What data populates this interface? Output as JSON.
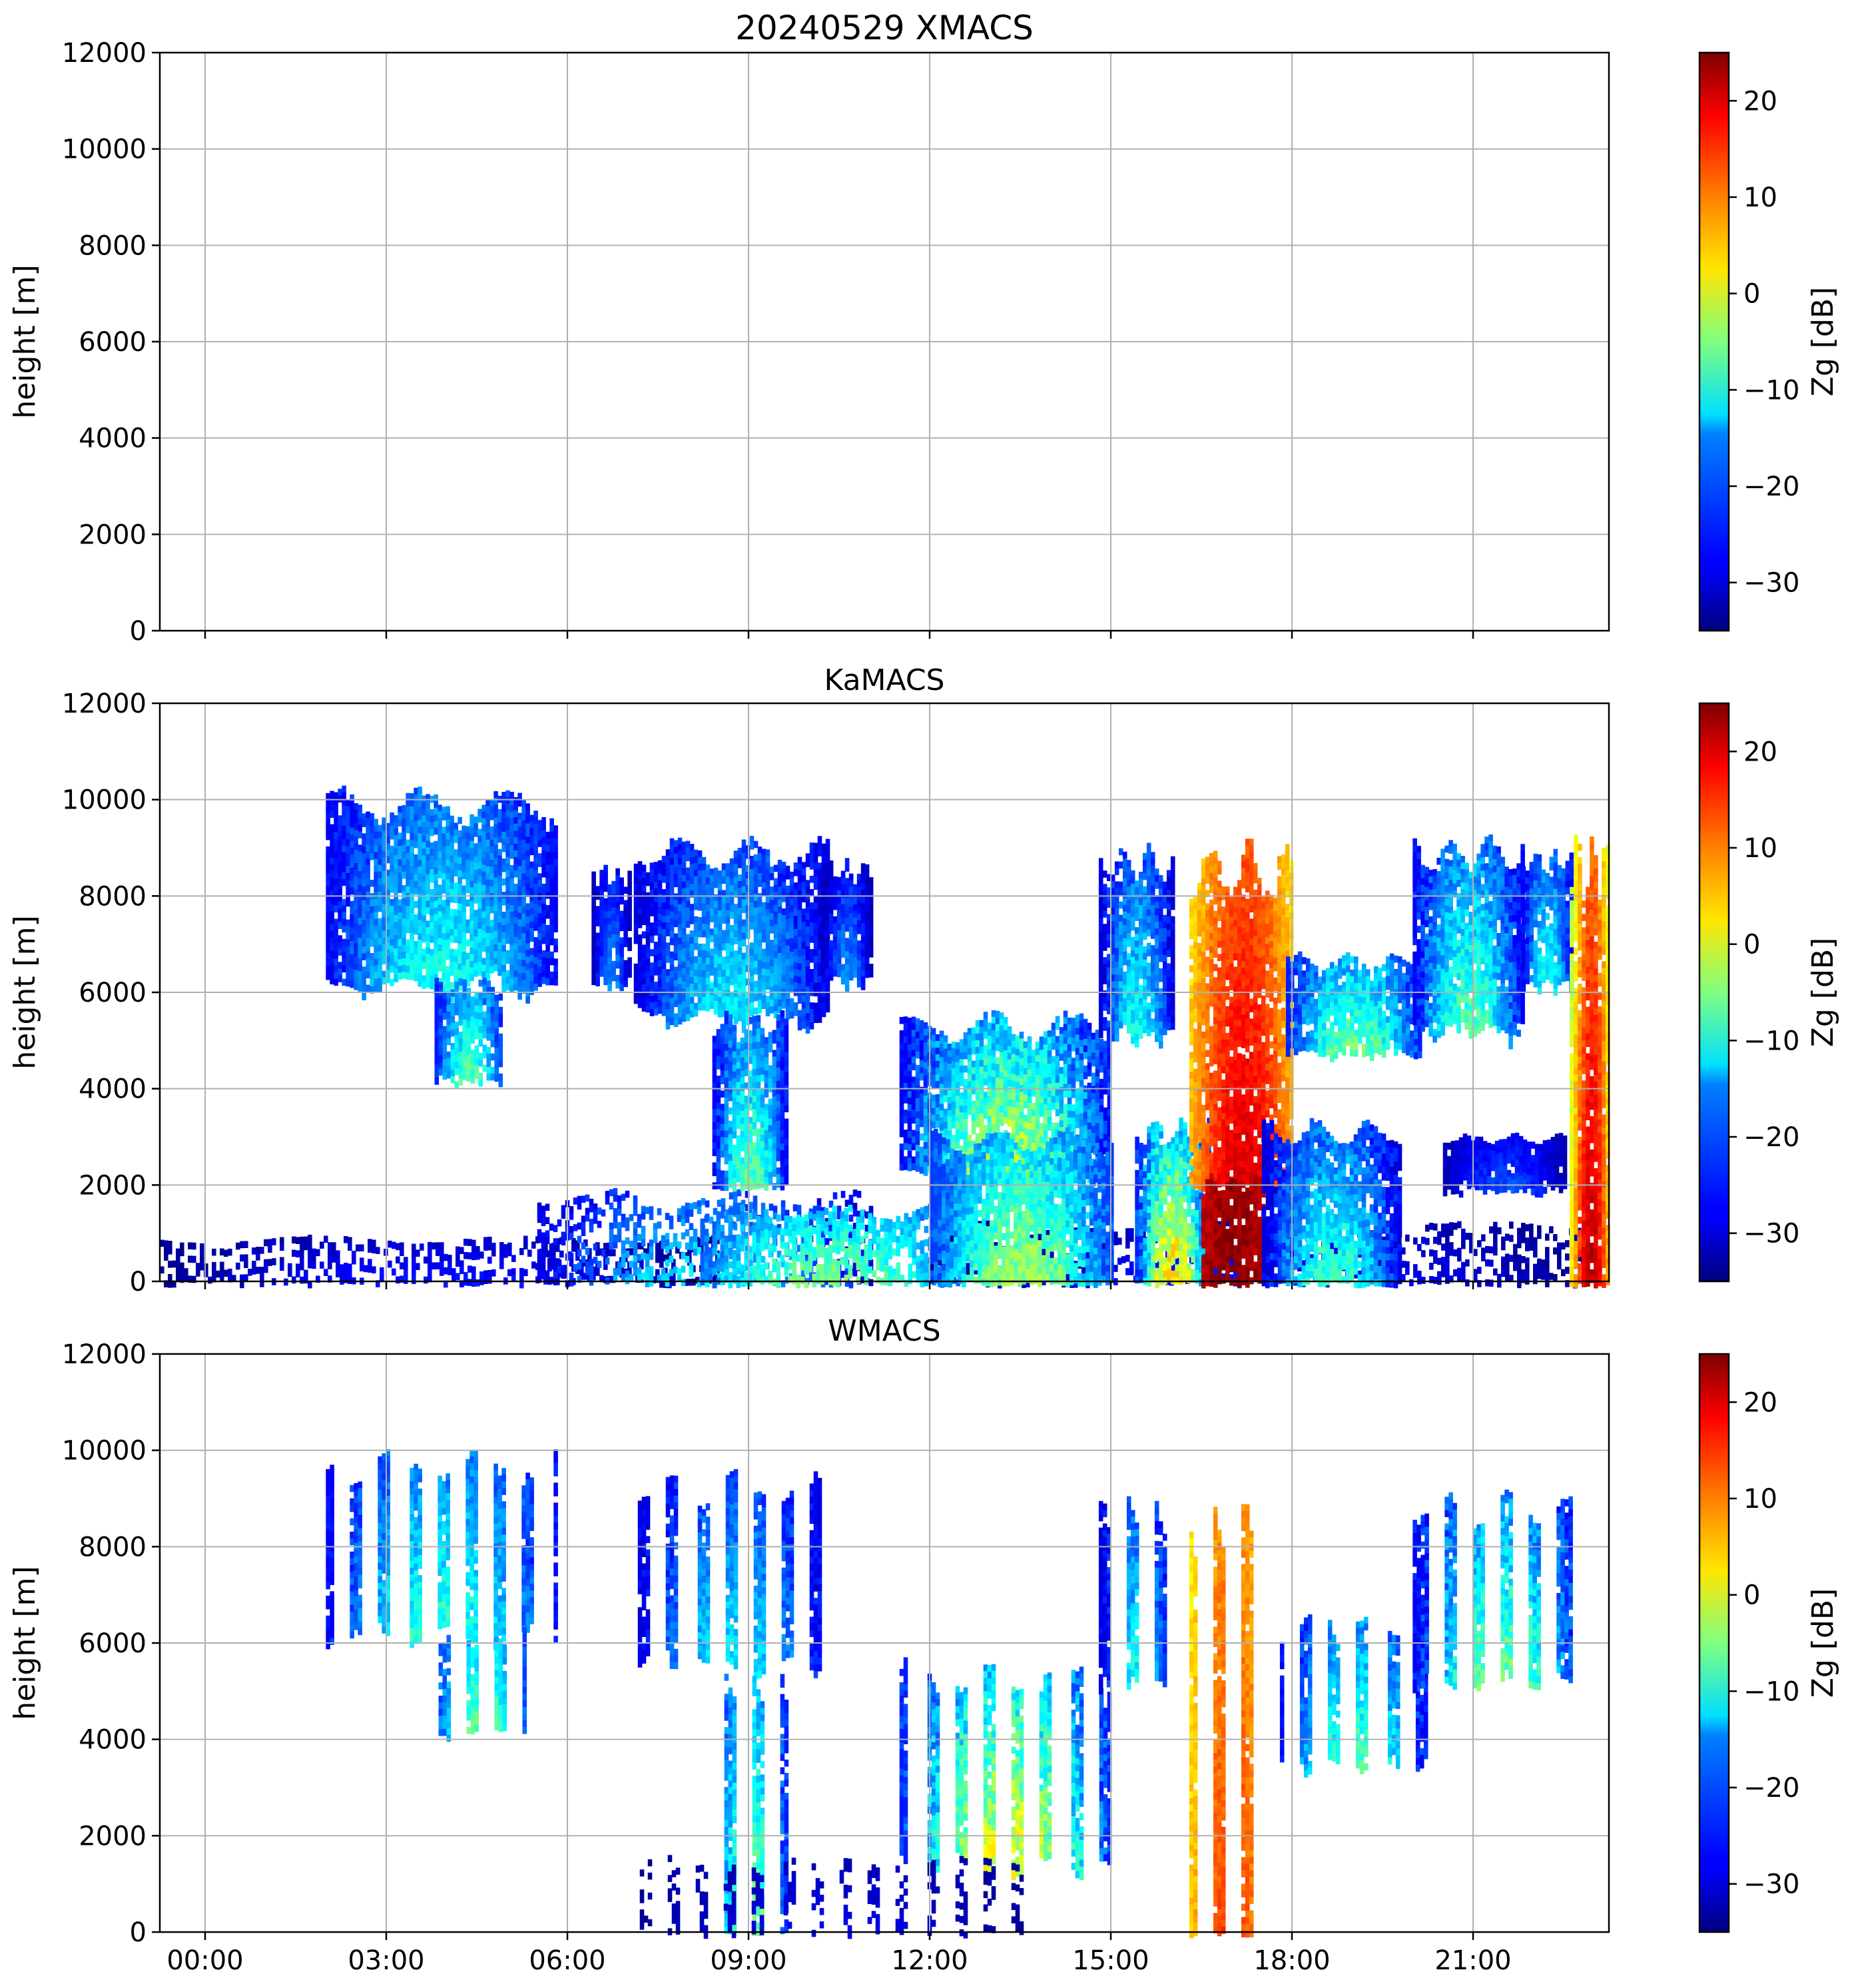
{
  "figure": {
    "title": "20240529 XMACS",
    "panel_titles": [
      "",
      "KaMACS",
      "WMACS"
    ]
  },
  "colors": {
    "colormap": "jet",
    "grid": "#b0b0b0",
    "axes": "#000000"
  },
  "chart_data": [
    {
      "type": "heatmap",
      "title": "20240529 XMACS",
      "xlabel": "",
      "ylabel": "height [m]",
      "x_ticks": [
        "00:00",
        "03:00",
        "06:00",
        "09:00",
        "12:00",
        "15:00",
        "18:00",
        "21:00"
      ],
      "x_tick_labels_shown": false,
      "y_ticks": [
        "0",
        "2000",
        "4000",
        "6000",
        "8000",
        "10000",
        "12000"
      ],
      "xlim_hours": [
        -0.75,
        23.25
      ],
      "ylim": [
        0,
        12000
      ],
      "grid": true,
      "colorbar": {
        "label": "Zg [dB]",
        "ticks": [
          "20",
          "10",
          "0",
          "−10",
          "−20",
          "−30"
        ],
        "range": [
          -35,
          25
        ]
      },
      "features": []
    },
    {
      "type": "heatmap",
      "title": "KaMACS",
      "xlabel": "",
      "ylabel": "height [m]",
      "x_ticks": [
        "00:00",
        "03:00",
        "06:00",
        "09:00",
        "12:00",
        "15:00",
        "18:00",
        "21:00"
      ],
      "x_tick_labels_shown": false,
      "y_ticks": [
        "0",
        "2000",
        "4000",
        "6000",
        "8000",
        "10000",
        "12000"
      ],
      "xlim_hours": [
        -0.75,
        23.25
      ],
      "ylim": [
        0,
        12000
      ],
      "grid": true,
      "colorbar": {
        "label": "Zg [dB]",
        "ticks": [
          "20",
          "10",
          "0",
          "−10",
          "−20",
          "−30"
        ],
        "range": [
          -35,
          25
        ]
      },
      "features": [
        {
          "t0": -0.75,
          "t1": 8.5,
          "base": 0,
          "top": 900,
          "zmin": -34,
          "zmax": -26,
          "kind": "noise"
        },
        {
          "t0": 5.5,
          "t1": 11.0,
          "base": 0,
          "top": 1800,
          "zmin": -30,
          "zmax": -12,
          "kind": "noise"
        },
        {
          "t0": 8.2,
          "t1": 12.5,
          "base": 0,
          "top": 1500,
          "zmin": -22,
          "zmax": -4,
          "kind": "streaks"
        },
        {
          "t0": 12.0,
          "t1": 22.8,
          "base": 0,
          "top": 1200,
          "zmin": -34,
          "zmax": -26,
          "kind": "noise"
        },
        {
          "t0": 2.0,
          "t1": 5.8,
          "base": 5800,
          "top": 10000,
          "zmin": -28,
          "zmax": -10,
          "kind": "cloud"
        },
        {
          "t0": 3.8,
          "t1": 4.9,
          "base": 4000,
          "top": 6200,
          "zmin": -26,
          "zmax": -6,
          "kind": "cloud"
        },
        {
          "t0": 6.4,
          "t1": 7.0,
          "base": 6000,
          "top": 8500,
          "zmin": -32,
          "zmax": -18,
          "kind": "cloud"
        },
        {
          "t0": 7.1,
          "t1": 10.3,
          "base": 5200,
          "top": 9000,
          "zmin": -30,
          "zmax": -12,
          "kind": "cloud"
        },
        {
          "t0": 8.4,
          "t1": 9.6,
          "base": 2000,
          "top": 5400,
          "zmin": -28,
          "zmax": -6,
          "kind": "fall"
        },
        {
          "t0": 10.2,
          "t1": 11.0,
          "base": 6000,
          "top": 8600,
          "zmin": -32,
          "zmax": -18,
          "kind": "cloud"
        },
        {
          "t0": 11.5,
          "t1": 15.0,
          "base": 2000,
          "top": 5400,
          "zmin": -28,
          "zmax": 2,
          "kind": "cloud"
        },
        {
          "t0": 12.0,
          "t1": 15.0,
          "base": 0,
          "top": 3000,
          "zmin": -24,
          "zmax": -2,
          "kind": "fall"
        },
        {
          "t0": 14.8,
          "t1": 16.0,
          "base": 4800,
          "top": 8800,
          "zmin": -30,
          "zmax": -10,
          "kind": "cloud"
        },
        {
          "t0": 15.4,
          "t1": 16.6,
          "base": 0,
          "top": 3200,
          "zmin": -26,
          "zmax": 6,
          "kind": "fall"
        },
        {
          "t0": 16.3,
          "t1": 18.0,
          "base": 2000,
          "top": 8700,
          "zmin": -8,
          "zmax": 20,
          "kind": "core"
        },
        {
          "t0": 16.5,
          "t1": 17.5,
          "base": 0,
          "top": 2100,
          "zmin": 18,
          "zmax": 25,
          "kind": "core"
        },
        {
          "t0": 17.9,
          "t1": 20.1,
          "base": 4600,
          "top": 6700,
          "zmin": -26,
          "zmax": -4,
          "kind": "cloud"
        },
        {
          "t0": 17.5,
          "t1": 19.8,
          "base": 0,
          "top": 3200,
          "zmin": -30,
          "zmax": -8,
          "kind": "fall"
        },
        {
          "t0": 20.0,
          "t1": 21.8,
          "base": 4900,
          "top": 9000,
          "zmin": -28,
          "zmax": -6,
          "kind": "cloud"
        },
        {
          "t0": 21.8,
          "t1": 22.6,
          "base": 6000,
          "top": 8800,
          "zmin": -28,
          "zmax": -10,
          "kind": "cloud"
        },
        {
          "t0": 20.5,
          "t1": 22.5,
          "base": 1800,
          "top": 3000,
          "zmin": -32,
          "zmax": -22,
          "kind": "cloud"
        },
        {
          "t0": 22.6,
          "t1": 23.25,
          "base": 0,
          "top": 8900,
          "zmin": -20,
          "zmax": 22,
          "kind": "core"
        }
      ]
    },
    {
      "type": "heatmap",
      "title": "WMACS",
      "xlabel": "",
      "ylabel": "height [m]",
      "x_ticks": [
        "00:00",
        "03:00",
        "06:00",
        "09:00",
        "12:00",
        "15:00",
        "18:00",
        "21:00"
      ],
      "x_tick_labels_shown": true,
      "y_ticks": [
        "0",
        "2000",
        "4000",
        "6000",
        "8000",
        "10000",
        "12000"
      ],
      "xlim_hours": [
        -0.75,
        23.25
      ],
      "ylim": [
        0,
        12000
      ],
      "grid": true,
      "colorbar": {
        "label": "Zg [dB]",
        "ticks": [
          "20",
          "10",
          "0",
          "−10",
          "−20",
          "−30"
        ],
        "range": [
          -35,
          25
        ]
      },
      "features": [
        {
          "t0": 2.0,
          "t1": 5.8,
          "base": 5800,
          "top": 9800,
          "zmin": -28,
          "zmax": -8,
          "kind": "cloud"
        },
        {
          "t0": 3.8,
          "t1": 5.3,
          "base": 4000,
          "top": 6200,
          "zmin": -24,
          "zmax": -4,
          "kind": "cloud"
        },
        {
          "t0": 7.1,
          "t1": 10.3,
          "base": 5200,
          "top": 9300,
          "zmin": -30,
          "zmax": -12,
          "kind": "cloud"
        },
        {
          "t0": 8.4,
          "t1": 9.6,
          "base": 0,
          "top": 5400,
          "zmin": -26,
          "zmax": -4,
          "kind": "fall"
        },
        {
          "t0": 11.5,
          "t1": 15.0,
          "base": 1000,
          "top": 5400,
          "zmin": -26,
          "zmax": 4,
          "kind": "cloud"
        },
        {
          "t0": 14.8,
          "t1": 16.0,
          "base": 4800,
          "top": 8800,
          "zmin": -30,
          "zmax": -10,
          "kind": "cloud"
        },
        {
          "t0": 16.3,
          "t1": 17.6,
          "base": 0,
          "top": 8500,
          "zmin": -4,
          "zmax": 14,
          "kind": "core"
        },
        {
          "t0": 17.8,
          "t1": 20.2,
          "base": 3200,
          "top": 6500,
          "zmin": -28,
          "zmax": -6,
          "kind": "cloud"
        },
        {
          "t0": 20.0,
          "t1": 22.8,
          "base": 4900,
          "top": 8900,
          "zmin": -28,
          "zmax": -4,
          "kind": "cloud"
        },
        {
          "t0": 7.0,
          "t1": 13.5,
          "base": 0,
          "top": 1500,
          "zmin": -34,
          "zmax": -28,
          "kind": "noise"
        }
      ]
    }
  ]
}
